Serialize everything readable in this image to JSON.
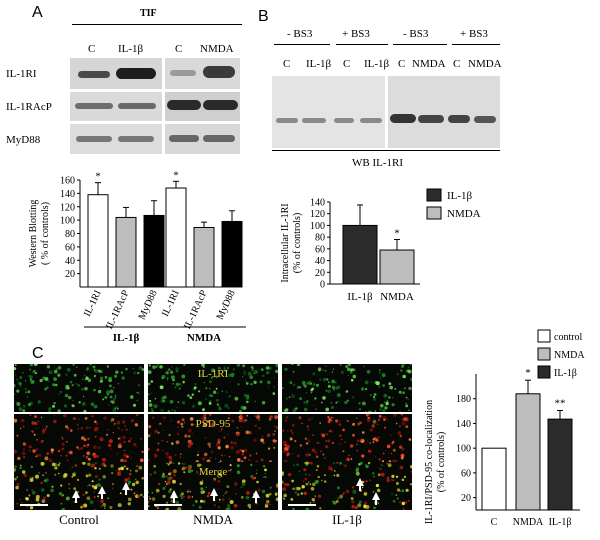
{
  "panelA": {
    "letter": "A",
    "tif": "TIF",
    "lanes_left": [
      "C",
      "IL-1β"
    ],
    "lanes_right": [
      "C",
      "NMDA"
    ],
    "rows": [
      "IL-1RI",
      "IL-1RAcP",
      "MyD88"
    ]
  },
  "panelB": {
    "letter": "B",
    "bs3_groups": [
      "- BS3",
      "+ BS3",
      "- BS3",
      "+ BS3"
    ],
    "lanes": [
      "C",
      "IL-1β",
      "C",
      "IL-1β",
      "C",
      "NMDA",
      "C",
      "NMDA"
    ],
    "wb_label": "WB  IL-1RI"
  },
  "panelC": {
    "letter": "C",
    "micro_labels": [
      "IL-1RI",
      "PSD-95",
      "Merge"
    ],
    "micro_captions": [
      "Control",
      "NMDA",
      "IL-1β"
    ]
  },
  "chart_data": [
    {
      "id": "A",
      "type": "bar",
      "ylabel": "Western Blotting ( % of controls)",
      "ylim": [
        0,
        160
      ],
      "yticks": [
        20,
        40,
        60,
        80,
        100,
        120,
        140,
        160
      ],
      "groups": [
        {
          "name": "IL-1β",
          "categories": [
            "IL-1RI",
            "IL-1RAcP",
            "MyD88"
          ],
          "values": [
            138,
            104,
            107
          ],
          "errors": [
            18,
            15,
            22
          ],
          "colors": [
            "#ffffff",
            "#bdbdbd",
            "#000000"
          ],
          "sig": [
            "*",
            "",
            ""
          ]
        },
        {
          "name": "NMDA",
          "categories": [
            "IL-1RI",
            "IL-1RAcP",
            "MyD88"
          ],
          "values": [
            148,
            89,
            98
          ],
          "errors": [
            10,
            8,
            16
          ],
          "colors": [
            "#ffffff",
            "#bdbdbd",
            "#000000"
          ],
          "sig": [
            "*",
            "",
            ""
          ]
        }
      ]
    },
    {
      "id": "B",
      "type": "bar",
      "ylabel": "Intracellular IL-1RI (% of controls)",
      "ylim": [
        0,
        140
      ],
      "yticks": [
        0,
        20,
        40,
        60,
        80,
        100,
        120,
        140
      ],
      "categories": [
        "IL-1β",
        "NMDA"
      ],
      "values": [
        100,
        58
      ],
      "errors": [
        35,
        18
      ],
      "colors": [
        "#2b2b2b",
        "#bdbdbd"
      ],
      "sig": [
        "",
        "*"
      ],
      "legend": [
        {
          "label": "IL-1β",
          "color": "#2b2b2b"
        },
        {
          "label": "NMDA",
          "color": "#bdbdbd"
        }
      ]
    },
    {
      "id": "C",
      "type": "bar",
      "ylabel": "IL-1RI/PSD-95 co-localization (% of controls)",
      "ylim": [
        0,
        220
      ],
      "yticks": [
        20,
        60,
        100,
        140,
        180
      ],
      "categories": [
        "C",
        "NMDA",
        "IL-1β"
      ],
      "values": [
        100,
        188,
        147
      ],
      "errors": [
        0,
        22,
        14
      ],
      "colors": [
        "#ffffff",
        "#bdbdbd",
        "#2b2b2b"
      ],
      "sig": [
        "",
        "*",
        "**"
      ],
      "legend": [
        {
          "label": "control",
          "color": "#ffffff"
        },
        {
          "label": "NMDA",
          "color": "#bdbdbd"
        },
        {
          "label": "IL-1β",
          "color": "#2b2b2b"
        }
      ]
    }
  ]
}
